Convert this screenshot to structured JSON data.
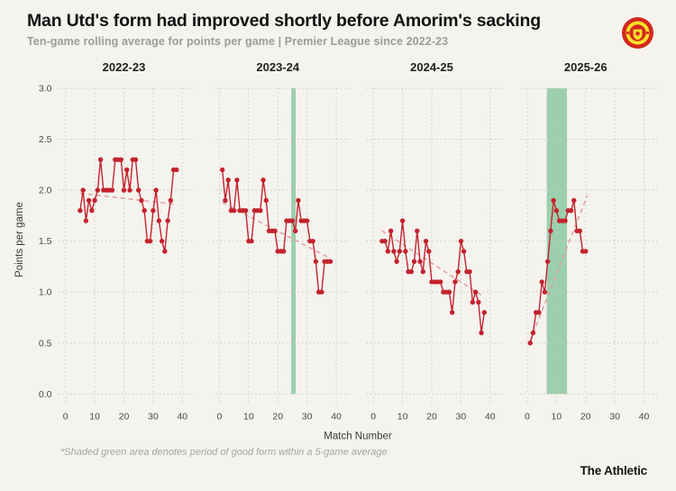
{
  "header": {
    "title": "Man Utd's form had improved shortly before Amorim's sacking",
    "subtitle": "Ten-game rolling average for points per game | Premier League since 2022-23",
    "club_badge": "manchester-united-crest"
  },
  "footer": {
    "footnote": "*Shaded green area denotes period of good form within a 5-game average",
    "brand": "The Athletic"
  },
  "chart_data": {
    "type": "line",
    "title": "Man Utd's form had improved shortly before Amorim's sacking",
    "xlabel": "Match Number",
    "ylabel": "Points per game",
    "x_ticks": [
      0,
      10,
      20,
      30,
      40
    ],
    "y_ticks": [
      0,
      0.5,
      1,
      1.5,
      2,
      2.5,
      3
    ],
    "ylim": [
      0,
      3
    ],
    "xlim": [
      -2.5,
      44.5
    ],
    "grid": "dotted",
    "legend": "none",
    "colors": {
      "line": "#c3232e",
      "trend": "#de9fa1",
      "band": "#9ccfad",
      "grid": "#c9c8c1",
      "background": "#f5f3ee"
    },
    "panels": [
      {
        "season": "2022-23",
        "start_match": 5,
        "values": [
          1.8,
          2.0,
          1.7,
          1.9,
          1.8,
          1.9,
          2.0,
          2.3,
          2.0,
          2.0,
          2.0,
          2.0,
          2.3,
          2.3,
          2.3,
          2.0,
          2.2,
          2.0,
          2.3,
          2.3,
          2.0,
          1.9,
          1.8,
          1.5,
          1.5,
          1.8,
          2.0,
          1.7,
          1.5,
          1.4,
          1.7,
          1.9,
          2.2,
          2.2
        ],
        "trend": {
          "x1": 5,
          "y1": 1.97,
          "x2": 38,
          "y2": 1.86
        },
        "highlight_band": null
      },
      {
        "season": "2023-24",
        "start_match": 1,
        "values": [
          2.2,
          1.9,
          2.1,
          1.8,
          1.8,
          2.1,
          1.8,
          1.8,
          1.8,
          1.5,
          1.5,
          1.8,
          1.8,
          1.8,
          2.1,
          1.9,
          1.6,
          1.6,
          1.6,
          1.4,
          1.4,
          1.4,
          1.7,
          1.7,
          1.7,
          1.6,
          1.9,
          1.7,
          1.7,
          1.7,
          1.5,
          1.5,
          1.3,
          1.0,
          1.0,
          1.3,
          1.3,
          1.3
        ],
        "trend": {
          "x1": 1,
          "y1": 1.88,
          "x2": 38,
          "y2": 1.33
        },
        "highlight_band": {
          "from": 24.6,
          "to": 26.1
        }
      },
      {
        "season": "2024-25",
        "start_match": 3,
        "values": [
          1.5,
          1.5,
          1.4,
          1.6,
          1.4,
          1.3,
          1.4,
          1.7,
          1.4,
          1.2,
          1.2,
          1.3,
          1.6,
          1.3,
          1.2,
          1.5,
          1.4,
          1.1,
          1.1,
          1.1,
          1.1,
          1.0,
          1.0,
          1.0,
          0.8,
          1.1,
          1.2,
          1.5,
          1.4,
          1.2,
          1.2,
          0.9,
          1.0,
          0.9,
          0.6,
          0.8
        ],
        "trend": {
          "x1": 3,
          "y1": 1.6,
          "x2": 38,
          "y2": 0.95
        },
        "highlight_band": null
      },
      {
        "season": "2025-26",
        "start_match": 1,
        "values": [
          0.5,
          0.6,
          0.8,
          0.8,
          1.1,
          1.0,
          1.3,
          1.6,
          1.9,
          1.8,
          1.7,
          1.7,
          1.7,
          1.8,
          1.8,
          1.9,
          1.6,
          1.6,
          1.4,
          1.4
        ],
        "trend": {
          "x1": 1,
          "y1": 0.52,
          "x2": 20.6,
          "y2": 1.95
        },
        "highlight_band": {
          "from": 6.7,
          "to": 13.6
        }
      }
    ]
  }
}
